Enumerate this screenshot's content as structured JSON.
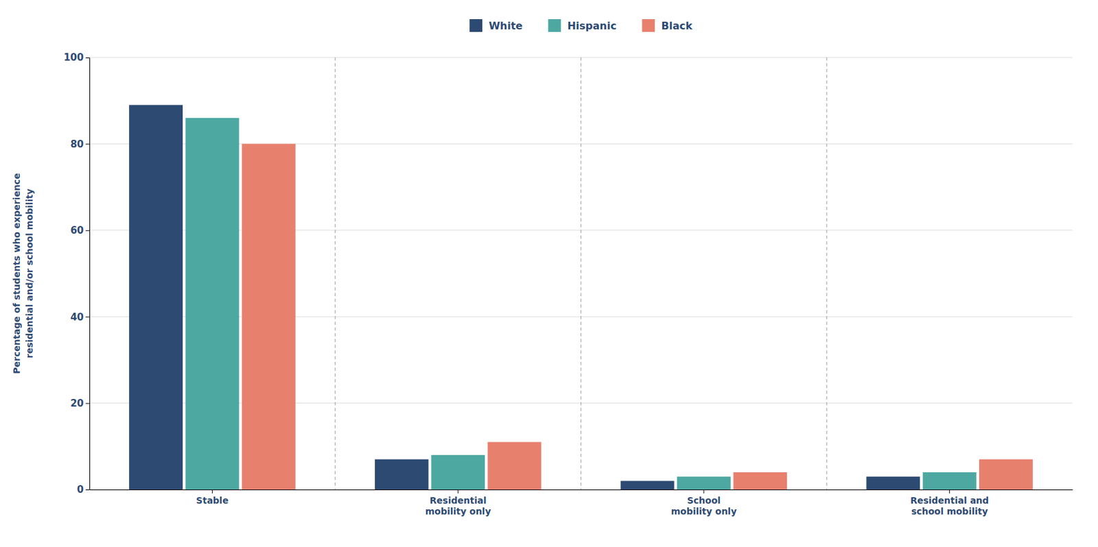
{
  "chart_data": {
    "type": "bar",
    "categories": [
      "Stable",
      "Residential\nmobility only",
      "School\nmobility only",
      "Residential and\nschool mobility"
    ],
    "series": [
      {
        "name": "White",
        "color": "#2d4a73",
        "values": [
          89,
          7,
          2,
          3
        ]
      },
      {
        "name": "Hispanic",
        "color": "#4ea8a2",
        "values": [
          86,
          8,
          3,
          4
        ]
      },
      {
        "name": "Black",
        "color": "#e8806e",
        "values": [
          80,
          11,
          4,
          7
        ]
      }
    ],
    "y_label": "Percentage of students who experience\nresidential and/or school mobility",
    "ylim": [
      0,
      100
    ],
    "yticks": [
      0,
      20,
      40,
      60,
      80,
      100
    ],
    "grid": true,
    "legend": "top"
  }
}
